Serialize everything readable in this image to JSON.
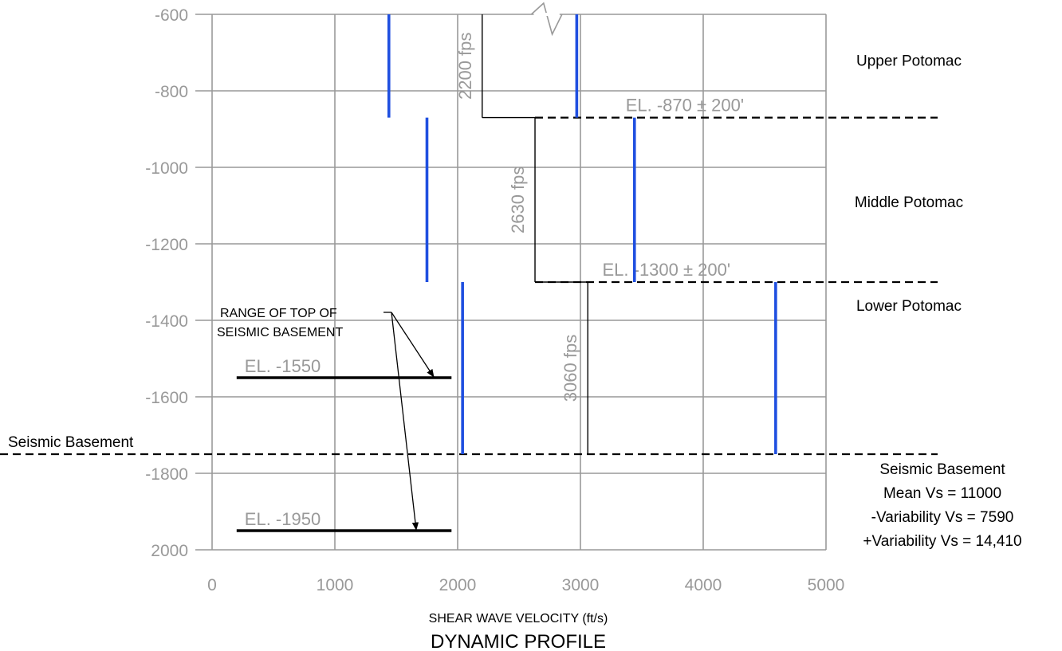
{
  "chart_data": {
    "type": "line",
    "title": "DYNAMIC PROFILE",
    "xlabel": "SHEAR WAVE VELOCITY (ft/s)",
    "ylabel": "",
    "xlim": [
      0,
      5000
    ],
    "ylim": [
      -600,
      -2000
    ],
    "grid": true,
    "x_ticks": [
      "0",
      "1000",
      "2000",
      "3000",
      "4000",
      "5000"
    ],
    "y_ticks": [
      "-600",
      "-800",
      "-1000",
      "-1200",
      "-1400",
      "-1600",
      "-1800",
      "2000"
    ],
    "mean_profile": {
      "segments": [
        {
          "vs": 2200,
          "top": -600,
          "bottom": -870,
          "label": "2200 fps"
        },
        {
          "vs": 2630,
          "top": -870,
          "bottom": -1300,
          "label": "2630 fps"
        },
        {
          "vs": 3060,
          "top": -1300,
          "bottom": -1750,
          "label": "3060 fps"
        }
      ]
    },
    "variability_bounds": [
      {
        "vs": 1440,
        "top": -600,
        "bottom": -870
      },
      {
        "vs": 2970,
        "top": -600,
        "bottom": -870
      },
      {
        "vs": 1750,
        "top": -870,
        "bottom": -1300
      },
      {
        "vs": 3440,
        "top": -870,
        "bottom": -1300
      },
      {
        "vs": 2040,
        "top": -1300,
        "bottom": -1750
      },
      {
        "vs": 4590,
        "top": -1300,
        "bottom": -1750
      }
    ],
    "layer_boundaries": [
      {
        "elevation": -870,
        "label": "EL. -870 ± 200'"
      },
      {
        "elevation": -1300,
        "label": "EL. -1300 ± 200'"
      }
    ],
    "seismic_basement": {
      "elevation": -1750,
      "label": "Seismic Basement"
    },
    "basement_range": [
      {
        "elevation": -1550,
        "label": "EL. -1550",
        "x_from": 200,
        "x_to": 1950
      },
      {
        "elevation": -1950,
        "label": "EL. -1950",
        "x_from": 200,
        "x_to": 1950
      }
    ],
    "range_note": [
      "RANGE OF TOP OF",
      "SEISMIC BASEMENT"
    ],
    "layers": [
      {
        "name": "Upper Potomac",
        "elevation": -720
      },
      {
        "name": "Middle Potomac",
        "elevation": -1090
      },
      {
        "name": "Lower Potomac",
        "elevation": -1360
      }
    ],
    "basement_info": [
      "Seismic Basement",
      "Mean Vs = 11000",
      "-Variability Vs = 7590",
      "+Variability Vs = 14,410"
    ],
    "colors": {
      "grid": "#999999",
      "variability": "#1f4fe0",
      "profile": "#000000",
      "labels": "#999999"
    }
  }
}
